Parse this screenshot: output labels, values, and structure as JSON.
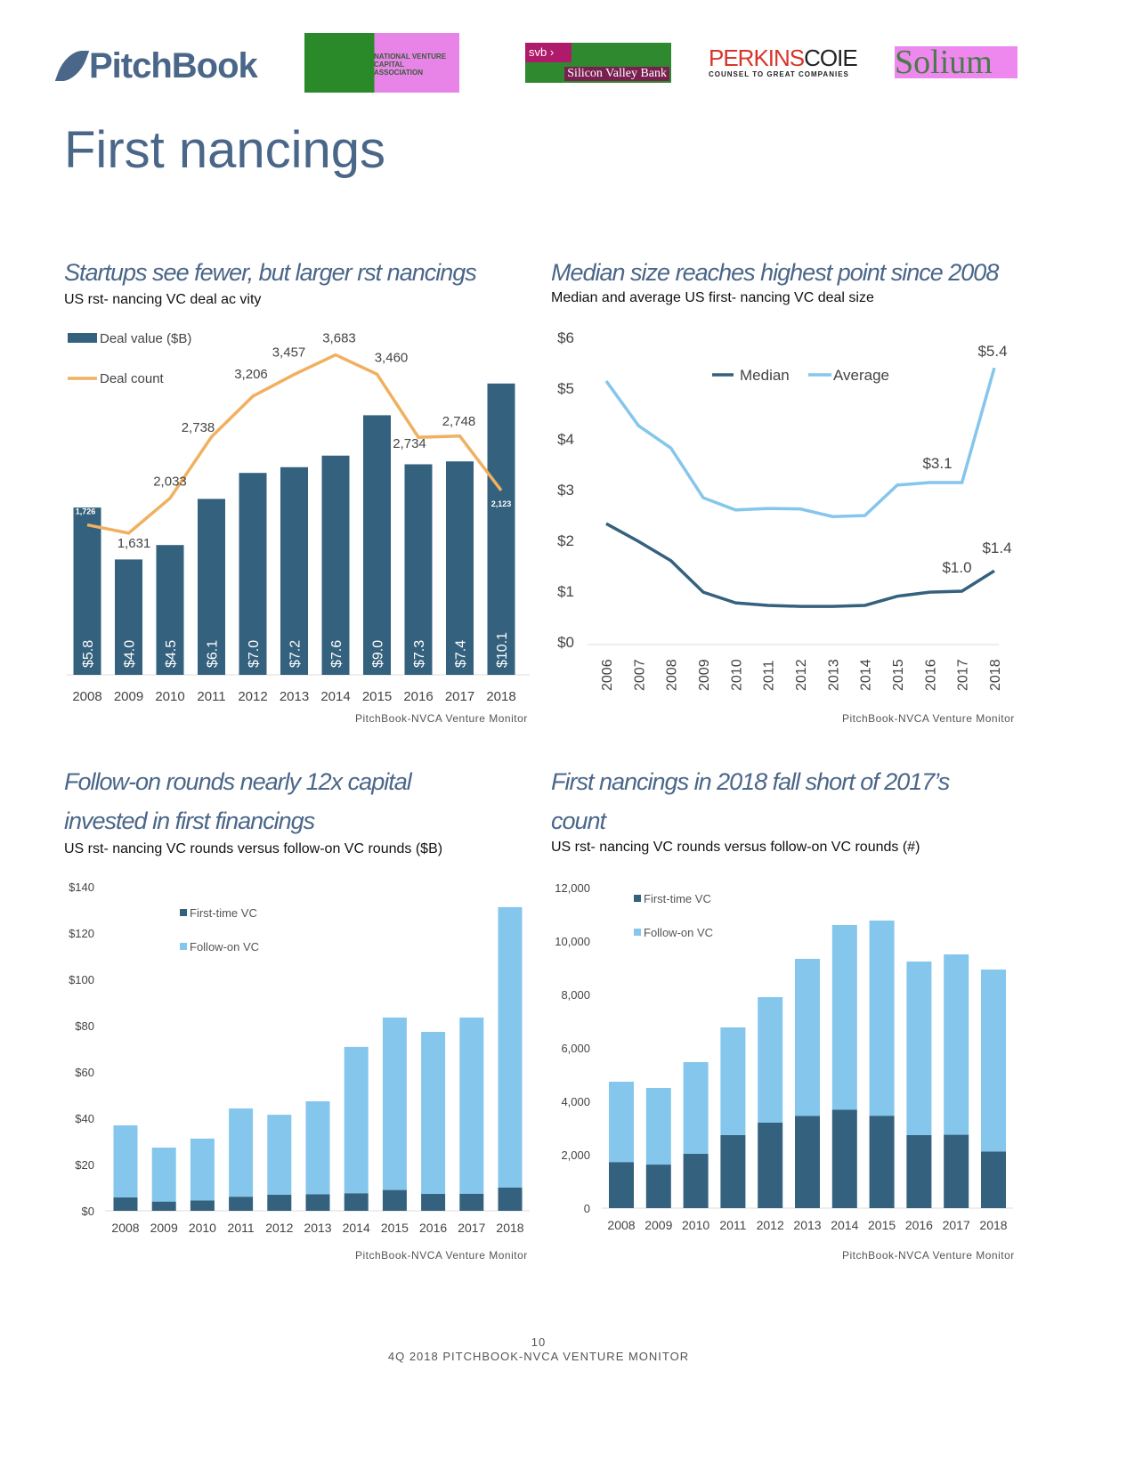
{
  "header": {
    "logos": [
      "PitchBook",
      "National Venture Capital Association",
      "svb Silicon Valley Bank",
      "PERKINS COIE COUNSEL TO GREAT COMPANIES",
      "Solium"
    ],
    "pitchbook": "PitchBook",
    "nvca": "NATIONAL VENTURE CAPITAL ASSOCIATION",
    "svb_tag": "svb ›",
    "svb_name": "Silicon Valley Bank",
    "perkins_a": "PERKINS",
    "perkins_b": "COIE",
    "perkins_tag": "COUNSEL TO GREAT COMPANIES",
    "solium": "Solium"
  },
  "page_title": "First   nancings",
  "source": "PitchBook-NVCA Venture Monitor",
  "footer": {
    "page_number": "10",
    "report": "4Q 2018 PITCHBOOK-NVCA VENTURE MONITOR"
  },
  "colors": {
    "dark": "#34617d",
    "light": "#85c6ec",
    "orange": "#f0b060",
    "title": "#4a6688"
  },
  "chart_data": [
    {
      "type": "bar",
      "title": "Startups see fewer, but larger  rst   nancings",
      "subtitle": "US  rst-  nancing VC deal ac  vity",
      "categories": [
        "2008",
        "2009",
        "2010",
        "2011",
        "2012",
        "2013",
        "2014",
        "2015",
        "2016",
        "2017",
        "2018"
      ],
      "series": [
        {
          "name": "Deal value ($B)",
          "type": "bar",
          "values": [
            5.8,
            4.0,
            4.5,
            6.1,
            7.0,
            7.2,
            7.6,
            9.0,
            7.3,
            7.4,
            10.1
          ],
          "labels": [
            "$5.8",
            "$4.0",
            "$4.5",
            "$6.1",
            "$7.0",
            "$7.2",
            "$7.6",
            "$9.0",
            "$7.3",
            "$7.4",
            "$10.1"
          ]
        },
        {
          "name": "Deal count",
          "type": "line",
          "values": [
            1726,
            1631,
            2033,
            2738,
            3206,
            3457,
            3683,
            3460,
            2734,
            2748,
            2123
          ],
          "labels": [
            "1,726",
            "1,631",
            "2,033",
            "2,738",
            "3,206",
            "3,457",
            "3,683",
            "3,460",
            "2,734",
            "2,748",
            "2,123"
          ]
        }
      ],
      "legend": "top-left"
    },
    {
      "type": "line",
      "title": "Median size reaches highest point since 2008",
      "subtitle": "Median and average US first-  nancing VC deal size",
      "x": [
        "2006",
        "2007",
        "2008",
        "2009",
        "2010",
        "2011",
        "2012",
        "2013",
        "2014",
        "2015",
        "2016",
        "2017",
        "2018"
      ],
      "yticks": [
        "$0",
        "$1",
        "$2",
        "$3",
        "$4",
        "$5",
        "$6"
      ],
      "ylim": [
        0,
        6
      ],
      "series": [
        {
          "name": "Median",
          "values": [
            2.33,
            1.98,
            1.6,
            0.98,
            0.77,
            0.72,
            0.7,
            0.7,
            0.72,
            0.9,
            0.98,
            1.0,
            1.4
          ]
        },
        {
          "name": "Average",
          "values": [
            5.14,
            4.26,
            3.82,
            2.84,
            2.6,
            2.63,
            2.62,
            2.47,
            2.49,
            3.09,
            3.14,
            3.14,
            5.4
          ]
        }
      ],
      "annotations": [
        "$5.4",
        "$3.1",
        "$1.0",
        "$1.4"
      ],
      "legend": "top-center"
    },
    {
      "type": "bar",
      "stacked": true,
      "title_lines": [
        "Follow-on rounds nearly 12x capital",
        "invested in first financings"
      ],
      "subtitle": "US  rst-  nancing VC rounds versus follow-on VC rounds ($B)",
      "categories": [
        "2008",
        "2009",
        "2010",
        "2011",
        "2012",
        "2013",
        "2014",
        "2015",
        "2016",
        "2017",
        "2018"
      ],
      "yticks": [
        "$0",
        "$20",
        "$40",
        "$60",
        "$80",
        "$100",
        "$120",
        "$140"
      ],
      "ylim": [
        0,
        140
      ],
      "series": [
        {
          "name": "First-time VC",
          "values": [
            5.8,
            4.0,
            4.5,
            6.1,
            7.0,
            7.2,
            7.6,
            9.0,
            7.3,
            7.4,
            10.1
          ]
        },
        {
          "name": "Follow-on VC",
          "values": [
            31.1,
            23.3,
            26.7,
            38.1,
            34.5,
            40.1,
            63.2,
            74.5,
            70.0,
            76.1,
            121.1
          ]
        }
      ],
      "legend": "top-center"
    },
    {
      "type": "bar",
      "stacked": true,
      "title_lines": [
        "First   nancings in 2018 fall short of 2017’s",
        "count"
      ],
      "subtitle": "US  rst-  nancing VC rounds versus follow-on VC rounds (#)",
      "categories": [
        "2008",
        "2009",
        "2010",
        "2011",
        "2012",
        "2013",
        "2014",
        "2015",
        "2016",
        "2017",
        "2018"
      ],
      "yticks": [
        "0",
        "2,000",
        "4,000",
        "6,000",
        "8,000",
        "10,000",
        "12,000"
      ],
      "ylim": [
        0,
        12000
      ],
      "series": [
        {
          "name": "First-time VC",
          "values": [
            1726,
            1631,
            2033,
            2738,
            3206,
            3457,
            3683,
            3460,
            2734,
            2748,
            2123
          ]
        },
        {
          "name": "Follow-on VC",
          "values": [
            3007,
            2869,
            3434,
            4029,
            4694,
            5876,
            6917,
            7307,
            6499,
            6752,
            6810
          ]
        }
      ],
      "legend": "top-left"
    }
  ]
}
